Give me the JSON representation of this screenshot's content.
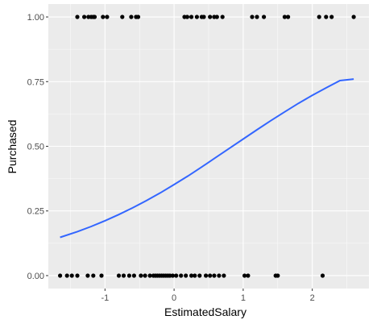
{
  "chart_data": {
    "type": "scatter",
    "xlabel": "EstimatedSalary",
    "ylabel": "Purchased",
    "xlim": [
      -1.82,
      2.82
    ],
    "ylim": [
      -0.05,
      1.05
    ],
    "x_ticks": [
      -1,
      0,
      1,
      2
    ],
    "x_tick_labels": [
      "-1",
      "0",
      "1",
      "2"
    ],
    "y_ticks": [
      0.0,
      0.25,
      0.5,
      0.75,
      1.0
    ],
    "y_tick_labels": [
      "0.00",
      "0.25",
      "0.50",
      "0.75",
      "1.00"
    ],
    "grid": true,
    "background": "#ebebeb",
    "grid_major_color": "#ffffff",
    "point_color": "#000000",
    "line_color": "#3366ff",
    "points": [
      {
        "x": -1.4,
        "y": 1
      },
      {
        "x": -1.3,
        "y": 1
      },
      {
        "x": -1.24,
        "y": 1
      },
      {
        "x": -1.2,
        "y": 1
      },
      {
        "x": -1.17,
        "y": 1
      },
      {
        "x": -1.15,
        "y": 1
      },
      {
        "x": -1.03,
        "y": 1
      },
      {
        "x": -0.97,
        "y": 1
      },
      {
        "x": -0.75,
        "y": 1
      },
      {
        "x": -0.62,
        "y": 1
      },
      {
        "x": -0.55,
        "y": 1
      },
      {
        "x": -0.52,
        "y": 1
      },
      {
        "x": 0.15,
        "y": 1
      },
      {
        "x": 0.19,
        "y": 1
      },
      {
        "x": 0.25,
        "y": 1
      },
      {
        "x": 0.33,
        "y": 1
      },
      {
        "x": 0.4,
        "y": 1
      },
      {
        "x": 0.43,
        "y": 1
      },
      {
        "x": 0.52,
        "y": 1
      },
      {
        "x": 0.58,
        "y": 1
      },
      {
        "x": 0.62,
        "y": 1
      },
      {
        "x": 0.7,
        "y": 1
      },
      {
        "x": 1.13,
        "y": 1
      },
      {
        "x": 1.2,
        "y": 1
      },
      {
        "x": 1.3,
        "y": 1
      },
      {
        "x": 1.6,
        "y": 1
      },
      {
        "x": 1.65,
        "y": 1
      },
      {
        "x": 2.1,
        "y": 1
      },
      {
        "x": 2.2,
        "y": 1
      },
      {
        "x": 2.28,
        "y": 1
      },
      {
        "x": 2.6,
        "y": 1
      },
      {
        "x": -1.65,
        "y": 0
      },
      {
        "x": -1.55,
        "y": 0
      },
      {
        "x": -1.48,
        "y": 0
      },
      {
        "x": -1.4,
        "y": 0
      },
      {
        "x": -1.25,
        "y": 0
      },
      {
        "x": -1.17,
        "y": 0
      },
      {
        "x": -1.05,
        "y": 0
      },
      {
        "x": -0.8,
        "y": 0
      },
      {
        "x": -0.73,
        "y": 0
      },
      {
        "x": -0.65,
        "y": 0
      },
      {
        "x": -0.58,
        "y": 0
      },
      {
        "x": -0.48,
        "y": 0
      },
      {
        "x": -0.42,
        "y": 0
      },
      {
        "x": -0.35,
        "y": 0
      },
      {
        "x": -0.3,
        "y": 0
      },
      {
        "x": -0.27,
        "y": 0
      },
      {
        "x": -0.24,
        "y": 0
      },
      {
        "x": -0.21,
        "y": 0
      },
      {
        "x": -0.18,
        "y": 0
      },
      {
        "x": -0.15,
        "y": 0
      },
      {
        "x": -0.12,
        "y": 0
      },
      {
        "x": -0.09,
        "y": 0
      },
      {
        "x": -0.06,
        "y": 0
      },
      {
        "x": -0.02,
        "y": 0
      },
      {
        "x": 0.03,
        "y": 0
      },
      {
        "x": 0.1,
        "y": 0
      },
      {
        "x": 0.17,
        "y": 0
      },
      {
        "x": 0.25,
        "y": 0
      },
      {
        "x": 0.3,
        "y": 0
      },
      {
        "x": 0.37,
        "y": 0
      },
      {
        "x": 0.46,
        "y": 0
      },
      {
        "x": 0.52,
        "y": 0
      },
      {
        "x": 0.58,
        "y": 0
      },
      {
        "x": 0.65,
        "y": 0
      },
      {
        "x": 0.72,
        "y": 0
      },
      {
        "x": 1.02,
        "y": 0
      },
      {
        "x": 1.07,
        "y": 0
      },
      {
        "x": 1.47,
        "y": 0
      },
      {
        "x": 1.5,
        "y": 0
      },
      {
        "x": 2.15,
        "y": 0
      }
    ],
    "fit_line": {
      "x": [
        -1.65,
        -1.4,
        -1.2,
        -1.0,
        -0.8,
        -0.6,
        -0.4,
        -0.2,
        0.0,
        0.2,
        0.4,
        0.6,
        0.8,
        1.0,
        1.2,
        1.4,
        1.6,
        1.8,
        2.0,
        2.2,
        2.4,
        2.6
      ],
      "y": [
        0.148,
        0.17,
        0.19,
        0.212,
        0.236,
        0.262,
        0.29,
        0.32,
        0.352,
        0.385,
        0.42,
        0.456,
        0.492,
        0.528,
        0.564,
        0.599,
        0.633,
        0.666,
        0.697,
        0.726,
        0.754,
        0.76
      ]
    }
  }
}
